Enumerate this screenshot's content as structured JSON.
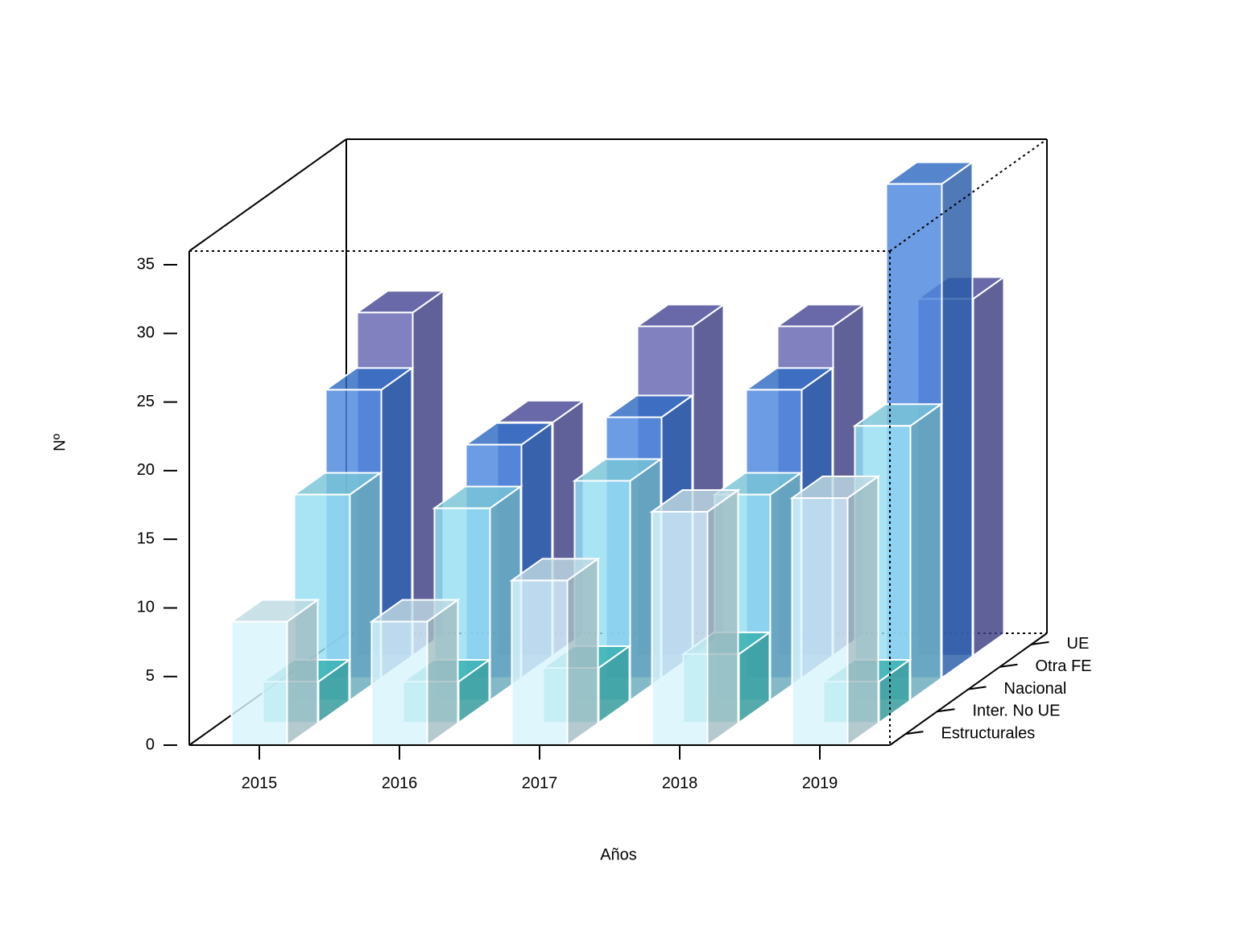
{
  "chart_data": {
    "type": "bar3d",
    "xlabel": "Años",
    "ylabel": "Nº",
    "categories": [
      "2015",
      "2016",
      "2017",
      "2018",
      "2019"
    ],
    "series": [
      {
        "name": "Estructurales",
        "color": "#d4f3fc",
        "values": [
          9,
          9,
          12,
          17,
          18
        ]
      },
      {
        "name": "Inter. No UE",
        "color": "#3cc3c3",
        "values": [
          3,
          3,
          4,
          5,
          3
        ]
      },
      {
        "name": "Nacional",
        "color": "#86daf0",
        "values": [
          15,
          14,
          16,
          15,
          20
        ]
      },
      {
        "name": "Otra FE",
        "color": "#3476d8",
        "values": [
          21,
          17,
          19,
          21,
          36
        ]
      },
      {
        "name": "UE",
        "color": "#5050a8",
        "values": [
          25,
          17,
          24,
          24,
          26
        ]
      }
    ],
    "ylim": [
      0,
      36
    ],
    "yticks": [
      0,
      5,
      10,
      15,
      20,
      25,
      30,
      35
    ]
  }
}
